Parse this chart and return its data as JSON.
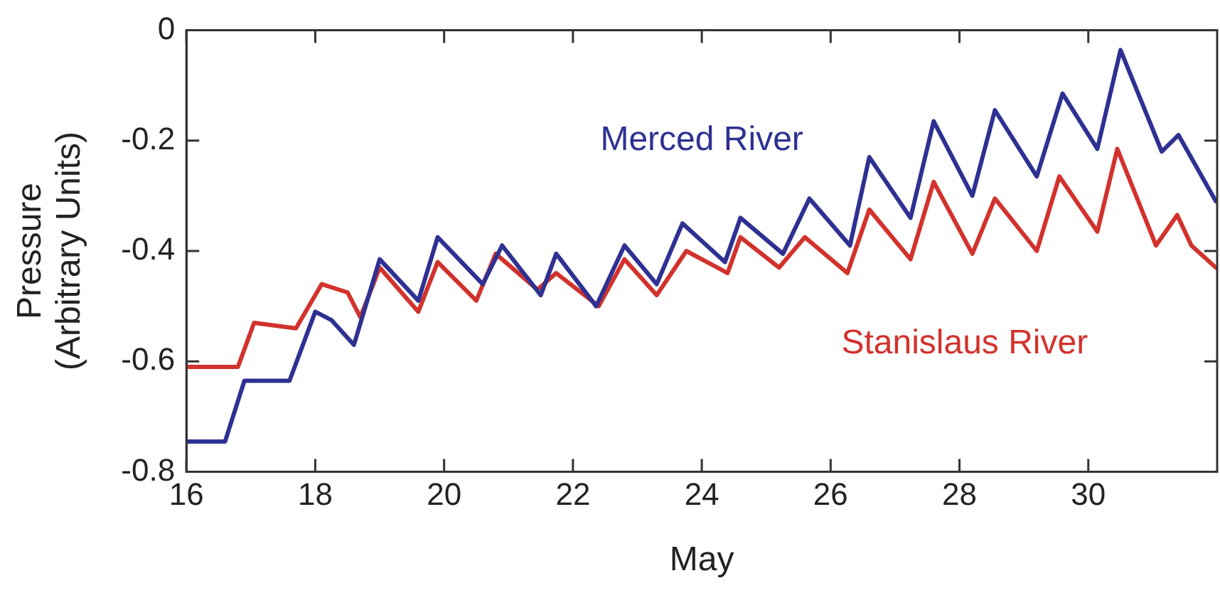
{
  "chart_data": {
    "type": "line",
    "xlabel": "May",
    "ylabel": "Pressure\n(Arbitrary Units)",
    "xlim": [
      16,
      32
    ],
    "xticks": [
      16,
      18,
      20,
      22,
      24,
      26,
      28,
      30
    ],
    "ylim": [
      -0.8,
      0
    ],
    "yticks": [
      -0.8,
      -0.6,
      -0.4,
      -0.2,
      0
    ],
    "legend": false,
    "grid": false,
    "marker": "none",
    "line_style": "solid",
    "series": [
      {
        "name": "Merced River",
        "color": "#2e3192",
        "x": [
          16,
          16.6,
          16.9,
          17.6,
          18.0,
          18.25,
          18.6,
          19.0,
          19.6,
          19.9,
          20.6,
          20.9,
          21.5,
          21.74,
          22.36,
          22.8,
          23.3,
          23.7,
          24.36,
          24.6,
          25.26,
          25.67,
          26.3,
          26.6,
          27.24,
          27.6,
          28.2,
          28.55,
          29.2,
          29.6,
          30.14,
          30.5,
          31.14,
          31.4,
          31.98
        ],
        "values": [
          -0.745,
          -0.745,
          -0.635,
          -0.635,
          -0.51,
          -0.525,
          -0.57,
          -0.415,
          -0.49,
          -0.375,
          -0.46,
          -0.39,
          -0.48,
          -0.405,
          -0.5,
          -0.39,
          -0.46,
          -0.35,
          -0.42,
          -0.34,
          -0.405,
          -0.305,
          -0.39,
          -0.23,
          -0.34,
          -0.165,
          -0.3,
          -0.145,
          -0.265,
          -0.115,
          -0.215,
          -0.036,
          -0.22,
          -0.19,
          -0.31
        ]
      },
      {
        "name": "Stanislaus River",
        "color": "#d2322d",
        "x": [
          16,
          16.8,
          17.05,
          17.7,
          18.1,
          18.5,
          18.7,
          19.0,
          19.6,
          19.9,
          20.5,
          20.8,
          21.45,
          21.74,
          22.4,
          22.8,
          23.3,
          23.76,
          24.4,
          24.6,
          25.2,
          25.6,
          26.26,
          26.6,
          27.24,
          27.6,
          28.2,
          28.55,
          29.2,
          29.55,
          30.14,
          30.45,
          31.05,
          31.38,
          31.6,
          31.98
        ],
        "values": [
          -0.61,
          -0.61,
          -0.53,
          -0.54,
          -0.46,
          -0.475,
          -0.52,
          -0.43,
          -0.51,
          -0.42,
          -0.49,
          -0.405,
          -0.47,
          -0.44,
          -0.5,
          -0.415,
          -0.48,
          -0.4,
          -0.44,
          -0.375,
          -0.43,
          -0.375,
          -0.44,
          -0.325,
          -0.415,
          -0.275,
          -0.405,
          -0.305,
          -0.4,
          -0.265,
          -0.365,
          -0.215,
          -0.39,
          -0.335,
          -0.39,
          -0.43
        ]
      }
    ]
  }
}
